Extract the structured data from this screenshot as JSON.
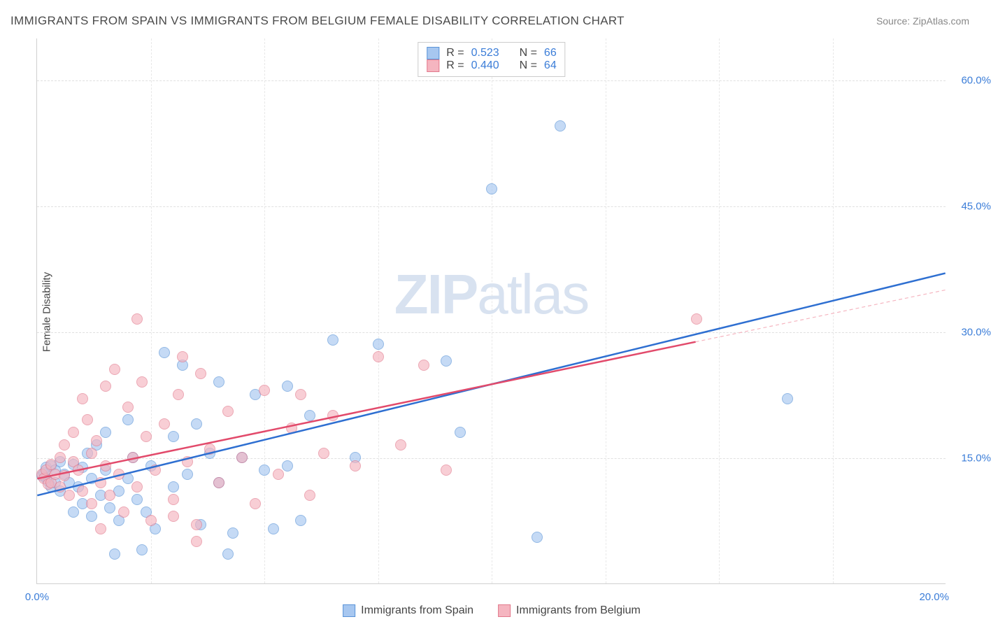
{
  "title": "IMMIGRANTS FROM SPAIN VS IMMIGRANTS FROM BELGIUM FEMALE DISABILITY CORRELATION CHART",
  "source": "Source: ZipAtlas.com",
  "watermark": "ZIPatlas",
  "chart": {
    "type": "scatter",
    "yaxis_title": "Female Disability",
    "background_color": "#ffffff",
    "grid_color": "#e0e0e0",
    "axis_color": "#d0d0d0",
    "label_color": "#3b7dd8",
    "title_fontsize": 17,
    "label_fontsize": 15,
    "xlim": [
      0,
      20
    ],
    "ylim": [
      0,
      65
    ],
    "yticks": [
      15,
      30,
      45,
      60
    ],
    "ytick_labels": [
      "15.0%",
      "30.0%",
      "45.0%",
      "60.0%"
    ],
    "xticks": [
      0,
      20
    ],
    "xtick_labels": [
      "0.0%",
      "20.0%"
    ],
    "vgrid": [
      2.5,
      5,
      7.5,
      10,
      12.5,
      15,
      17.5
    ],
    "marker_size": 16,
    "legend_top": {
      "rows": [
        {
          "swatch_fill": "#a7c7f0",
          "swatch_border": "#5a94d8",
          "r_label": "R =",
          "r": "0.523",
          "n_label": "N =",
          "n": "66"
        },
        {
          "swatch_fill": "#f5b5c0",
          "swatch_border": "#e27a8d",
          "r_label": "R =",
          "r": "0.440",
          "n_label": "N =",
          "n": "64"
        }
      ]
    },
    "legend_bottom": [
      {
        "swatch_fill": "#a7c7f0",
        "swatch_border": "#5a94d8",
        "label": "Immigrants from Spain"
      },
      {
        "swatch_fill": "#f5b5c0",
        "swatch_border": "#e27a8d",
        "label": "Immigrants from Belgium"
      }
    ],
    "series": [
      {
        "name": "spain",
        "color_fill": "#a7c7f0",
        "color_border": "#5a94d8",
        "trend": {
          "x1": 0,
          "y1": 10.5,
          "x2": 20,
          "y2": 37,
          "solid_color": "#2e6fd1",
          "width": 2.5,
          "dash_offset_y": 0
        },
        "points": [
          [
            0.1,
            12.8
          ],
          [
            0.15,
            13.2
          ],
          [
            0.2,
            12.5
          ],
          [
            0.2,
            13.8
          ],
          [
            0.25,
            12.2
          ],
          [
            0.3,
            14.0
          ],
          [
            0.3,
            11.5
          ],
          [
            0.4,
            13.5
          ],
          [
            0.4,
            12.0
          ],
          [
            0.5,
            14.5
          ],
          [
            0.5,
            11.0
          ],
          [
            0.6,
            13.0
          ],
          [
            0.7,
            12.0
          ],
          [
            0.8,
            14.2
          ],
          [
            0.8,
            8.5
          ],
          [
            0.9,
            11.5
          ],
          [
            1.0,
            13.8
          ],
          [
            1.0,
            9.5
          ],
          [
            1.1,
            15.5
          ],
          [
            1.2,
            12.5
          ],
          [
            1.2,
            8.0
          ],
          [
            1.3,
            16.5
          ],
          [
            1.4,
            10.5
          ],
          [
            1.5,
            13.5
          ],
          [
            1.5,
            18.0
          ],
          [
            1.6,
            9.0
          ],
          [
            1.8,
            11.0
          ],
          [
            1.8,
            7.5
          ],
          [
            2.0,
            19.5
          ],
          [
            2.0,
            12.5
          ],
          [
            2.1,
            15.0
          ],
          [
            2.2,
            10.0
          ],
          [
            2.4,
            8.5
          ],
          [
            2.5,
            14.0
          ],
          [
            2.6,
            6.5
          ],
          [
            2.8,
            27.5
          ],
          [
            3.0,
            17.5
          ],
          [
            3.0,
            11.5
          ],
          [
            3.2,
            26.0
          ],
          [
            3.3,
            13.0
          ],
          [
            3.5,
            19.0
          ],
          [
            3.6,
            7.0
          ],
          [
            3.8,
            15.5
          ],
          [
            4.0,
            24.0
          ],
          [
            4.0,
            12.0
          ],
          [
            4.3,
            6.0
          ],
          [
            4.5,
            15.0
          ],
          [
            4.8,
            22.5
          ],
          [
            5.0,
            13.5
          ],
          [
            5.2,
            6.5
          ],
          [
            5.5,
            23.5
          ],
          [
            5.5,
            14.0
          ],
          [
            5.8,
            7.5
          ],
          [
            6.0,
            20.0
          ],
          [
            6.5,
            29.0
          ],
          [
            7.0,
            15.0
          ],
          [
            7.5,
            28.5
          ],
          [
            9.0,
            26.5
          ],
          [
            9.3,
            18.0
          ],
          [
            10.0,
            47.0
          ],
          [
            11.0,
            5.5
          ],
          [
            11.5,
            54.5
          ],
          [
            16.5,
            22.0
          ],
          [
            4.2,
            3.5
          ],
          [
            2.3,
            4.0
          ],
          [
            1.7,
            3.5
          ]
        ]
      },
      {
        "name": "belgium",
        "color_fill": "#f5b5c0",
        "color_border": "#e27a8d",
        "trend": {
          "x1": 0,
          "y1": 12.5,
          "x2": 20,
          "y2": 35,
          "solid_color": "#e24a6b",
          "width": 2.5,
          "dash_color": "#f5b5c0",
          "dash_from_x": 14.5
        },
        "points": [
          [
            0.1,
            13.0
          ],
          [
            0.15,
            12.5
          ],
          [
            0.2,
            13.5
          ],
          [
            0.25,
            11.8
          ],
          [
            0.3,
            14.2
          ],
          [
            0.3,
            12.0
          ],
          [
            0.4,
            13.0
          ],
          [
            0.5,
            15.0
          ],
          [
            0.5,
            11.5
          ],
          [
            0.6,
            16.5
          ],
          [
            0.6,
            12.8
          ],
          [
            0.7,
            10.5
          ],
          [
            0.8,
            14.5
          ],
          [
            0.8,
            18.0
          ],
          [
            0.9,
            13.5
          ],
          [
            1.0,
            22.0
          ],
          [
            1.0,
            11.0
          ],
          [
            1.1,
            19.5
          ],
          [
            1.2,
            15.5
          ],
          [
            1.2,
            9.5
          ],
          [
            1.3,
            17.0
          ],
          [
            1.4,
            12.0
          ],
          [
            1.5,
            23.5
          ],
          [
            1.5,
            14.0
          ],
          [
            1.6,
            10.5
          ],
          [
            1.7,
            25.5
          ],
          [
            1.8,
            13.0
          ],
          [
            1.9,
            8.5
          ],
          [
            2.0,
            21.0
          ],
          [
            2.1,
            15.0
          ],
          [
            2.2,
            11.5
          ],
          [
            2.3,
            24.0
          ],
          [
            2.4,
            17.5
          ],
          [
            2.5,
            7.5
          ],
          [
            2.6,
            13.5
          ],
          [
            2.8,
            19.0
          ],
          [
            3.0,
            10.0
          ],
          [
            3.1,
            22.5
          ],
          [
            3.2,
            27.0
          ],
          [
            3.3,
            14.5
          ],
          [
            3.5,
            7.0
          ],
          [
            3.6,
            25.0
          ],
          [
            3.8,
            16.0
          ],
          [
            4.0,
            12.0
          ],
          [
            4.2,
            20.5
          ],
          [
            4.5,
            15.0
          ],
          [
            4.8,
            9.5
          ],
          [
            5.0,
            23.0
          ],
          [
            5.3,
            13.0
          ],
          [
            5.6,
            18.5
          ],
          [
            5.8,
            22.5
          ],
          [
            6.0,
            10.5
          ],
          [
            6.3,
            15.5
          ],
          [
            6.5,
            20.0
          ],
          [
            7.0,
            14.0
          ],
          [
            7.5,
            27.0
          ],
          [
            8.0,
            16.5
          ],
          [
            8.5,
            26.0
          ],
          [
            9.0,
            13.5
          ],
          [
            2.2,
            31.5
          ],
          [
            3.0,
            8.0
          ],
          [
            3.5,
            5.0
          ],
          [
            14.5,
            31.5
          ],
          [
            1.4,
            6.5
          ]
        ]
      }
    ]
  }
}
